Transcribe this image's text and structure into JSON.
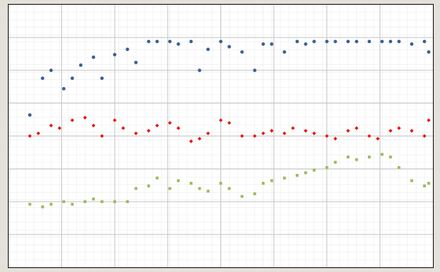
{
  "chart_data": {
    "type": "scatter",
    "title": "",
    "xlabel": "",
    "ylabel": "",
    "xlim": [
      0,
      100
    ],
    "ylim": [
      0,
      100
    ],
    "grid": true,
    "legend": "none",
    "colors": {
      "plot_background": "#ffffff",
      "grid_major": "#c8c8c8",
      "grid_minor": "#eeeeee",
      "border": "#1a1a1a",
      "page_background": "#e4e0da"
    },
    "series": [
      {
        "color": "#3a6194",
        "marker": "circle",
        "x": [
          5,
          8,
          10,
          13,
          15,
          17,
          20,
          22,
          25,
          28,
          30,
          33,
          35,
          38,
          40,
          43,
          45,
          47,
          50,
          52,
          55,
          58,
          60,
          62,
          65,
          68,
          70,
          72,
          75,
          77,
          80,
          82,
          85,
          88,
          90,
          92,
          95,
          98,
          99
        ],
        "y": [
          58,
          72,
          75,
          68,
          72,
          77,
          80,
          72,
          81,
          83,
          78,
          86,
          86,
          86,
          85,
          86,
          75,
          83,
          86,
          84,
          82,
          75,
          85,
          85,
          82,
          86,
          85,
          86,
          86,
          86,
          86,
          86,
          86,
          86,
          86,
          86,
          85,
          86,
          82
        ]
      },
      {
        "color": "#e8140e",
        "marker": "diamond",
        "x": [
          5,
          7,
          10,
          12,
          15,
          18,
          20,
          22,
          25,
          27,
          30,
          33,
          35,
          38,
          40,
          43,
          45,
          47,
          50,
          52,
          55,
          58,
          60,
          62,
          65,
          67,
          70,
          72,
          75,
          77,
          80,
          82,
          85,
          87,
          90,
          92,
          95,
          98,
          99
        ],
        "y": [
          50,
          51,
          54,
          53,
          56,
          57,
          54,
          50,
          56,
          53,
          51,
          52,
          54,
          55,
          53,
          48,
          49,
          51,
          56,
          55,
          50,
          50,
          51,
          52,
          51,
          53,
          52,
          51,
          50,
          49,
          52,
          53,
          50,
          49,
          52,
          53,
          52,
          50,
          56
        ]
      },
      {
        "color": "#9bbb59",
        "marker": "square",
        "x": [
          5,
          8,
          10,
          13,
          15,
          18,
          20,
          22,
          25,
          28,
          30,
          33,
          35,
          38,
          40,
          43,
          45,
          47,
          50,
          52,
          55,
          58,
          60,
          62,
          65,
          68,
          70,
          72,
          75,
          77,
          80,
          82,
          85,
          88,
          90,
          92,
          95,
          98,
          99
        ],
        "y": [
          24,
          23,
          24,
          25,
          24,
          25,
          26,
          25,
          25,
          25,
          30,
          31,
          34,
          30,
          33,
          32,
          30,
          29,
          32,
          30,
          27,
          28,
          32,
          33,
          34,
          35,
          36,
          37,
          38,
          40,
          42,
          41,
          42,
          43,
          42,
          38,
          33,
          31,
          32
        ]
      }
    ]
  }
}
